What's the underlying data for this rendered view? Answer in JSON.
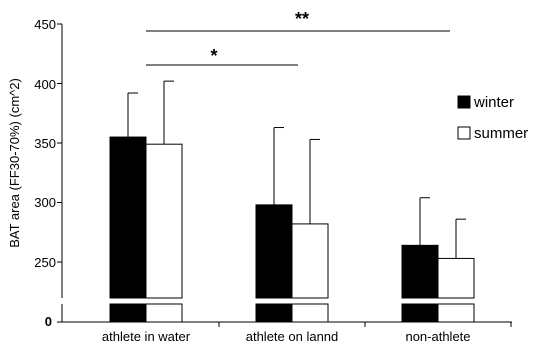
{
  "chart_data": {
    "type": "bar",
    "title": "",
    "xlabel": "",
    "ylabel": "BAT area (FF30-70%) (cm^2)",
    "ylim": [
      200,
      450
    ],
    "broken_axis": true,
    "yticks": [
      "450",
      "400",
      "350",
      "300",
      "250"
    ],
    "zero_label": "0",
    "categories": [
      "athlete in water",
      "athlete on lannd",
      "non-athlete"
    ],
    "series": [
      {
        "name": "winter",
        "color": "#000000",
        "values": [
          355,
          298,
          264
        ],
        "error": [
          37,
          65,
          40
        ]
      },
      {
        "name": "summer",
        "color": "#ffffff",
        "values": [
          349,
          282,
          253
        ],
        "error": [
          53,
          71,
          33
        ]
      }
    ],
    "legend": {
      "position": "right"
    },
    "significance": [
      {
        "label": "*",
        "from": "athlete in water",
        "to": "athlete on lannd"
      },
      {
        "label": "**",
        "from": "athlete in water",
        "to": "non-athlete"
      }
    ]
  }
}
